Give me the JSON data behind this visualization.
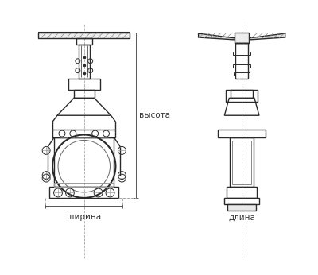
{
  "bg_color": "#ffffff",
  "line_color": "#2a2a2a",
  "label_width": "ширина",
  "label_height": "высота",
  "label_length": "длина",
  "figsize": [
    4.0,
    3.46
  ],
  "dpi": 100
}
